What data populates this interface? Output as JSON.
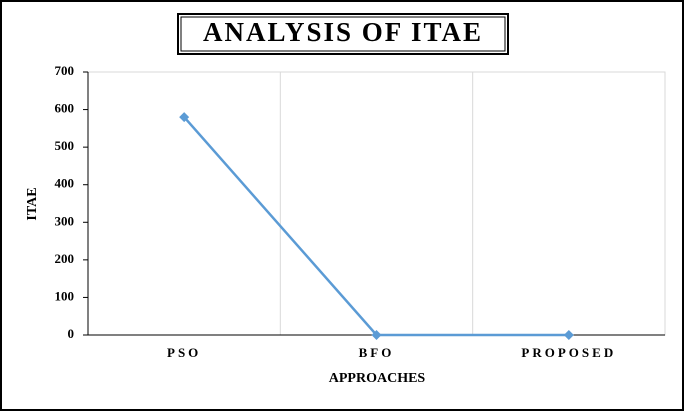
{
  "chart_data": {
    "type": "line",
    "title": "ANALYSIS OF ITAE",
    "categories": [
      "PSO",
      "BFO",
      "PROPOSED"
    ],
    "series": [
      {
        "name": "ITAE",
        "color": "#5b9bd5",
        "values": [
          580,
          0,
          0
        ]
      }
    ],
    "x_label": "APPROACHES",
    "y_label": "ITAE",
    "ylim": [
      0,
      700
    ],
    "yticks": [
      0,
      100,
      200,
      300,
      400,
      500,
      600,
      700
    ],
    "grid": true
  }
}
